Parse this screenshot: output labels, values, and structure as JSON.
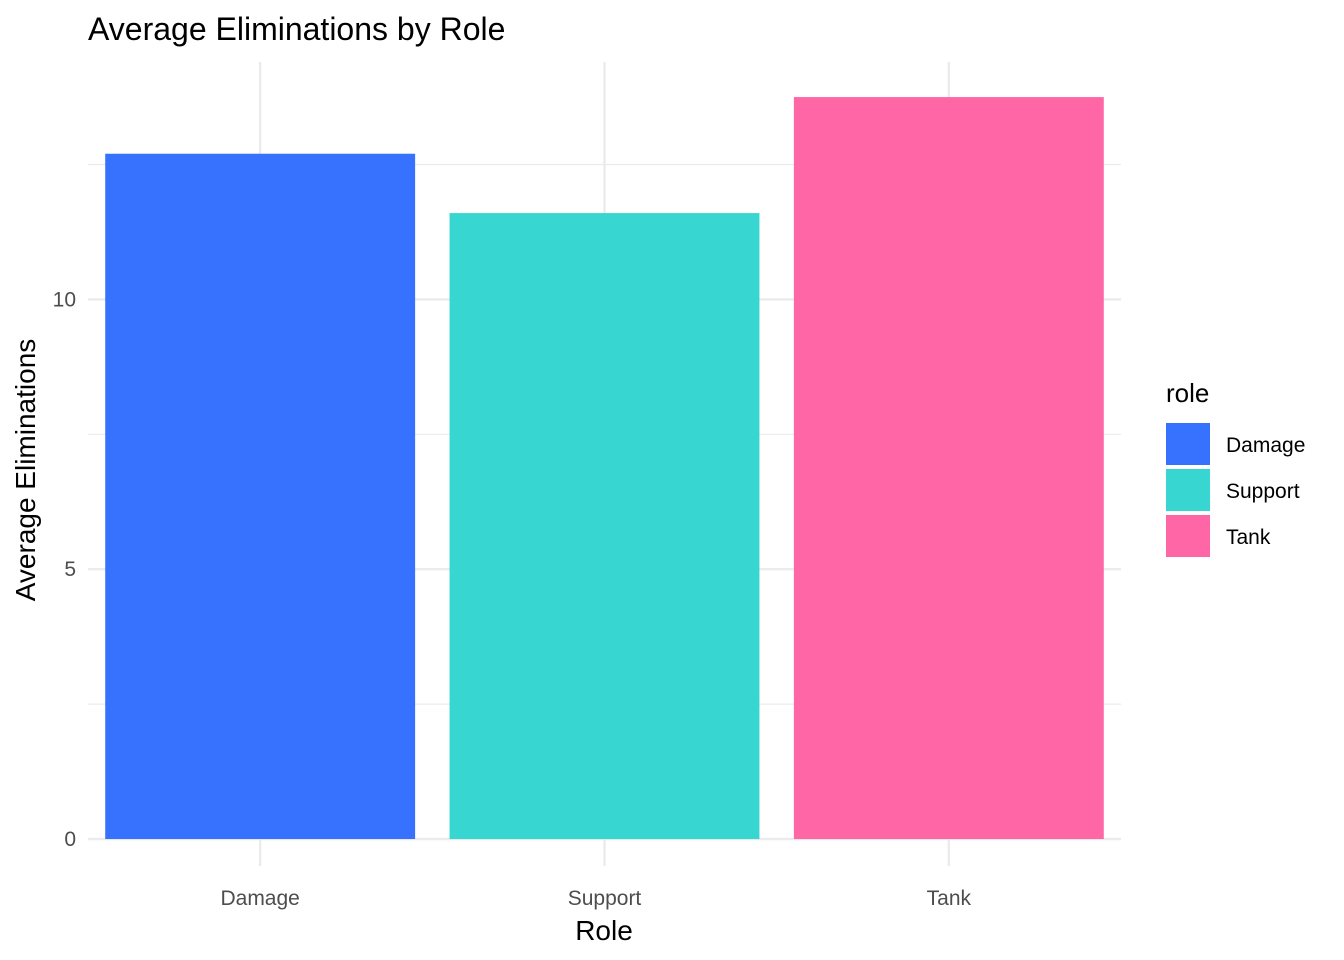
{
  "chart_data": {
    "type": "bar",
    "title": "Average Eliminations by Role",
    "xlabel": "Role",
    "ylabel": "Average Eliminations",
    "categories": [
      "Damage",
      "Support",
      "Tank"
    ],
    "values": [
      12.7,
      11.6,
      13.75
    ],
    "colors": [
      "#3772FF",
      "#38D6D0",
      "#FF66A6"
    ],
    "ylim": [
      -0.5,
      14.4
    ],
    "yticks": [
      0,
      5,
      10
    ],
    "grid": true,
    "legend": {
      "title": "role",
      "placement": "right",
      "entries": [
        "Damage",
        "Support",
        "Tank"
      ]
    }
  }
}
